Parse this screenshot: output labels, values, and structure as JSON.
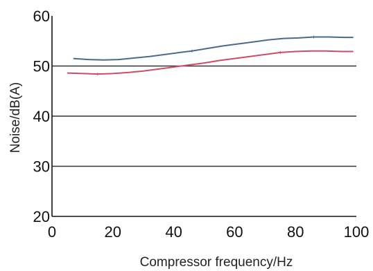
{
  "chart_data": {
    "type": "line",
    "xlabel": "Compressor frequency/Hz",
    "ylabel": "Noise/dB(A)",
    "xlim": [
      0,
      100
    ],
    "ylim": [
      20,
      60
    ],
    "xticks": [
      0,
      20,
      40,
      60,
      80,
      100
    ],
    "yticks": [
      20,
      30,
      40,
      50,
      60
    ],
    "xtick_labels": [
      "0",
      "20",
      "40",
      "60",
      "80",
      "100"
    ],
    "ytick_labels": [
      "20",
      "30",
      "40",
      "50",
      "60"
    ],
    "grid": "horizontal at 30, 40 and 50",
    "series": [
      {
        "color": "#4a6a8a",
        "x": [
          7,
          12,
          17,
          22,
          27,
          32,
          37,
          42,
          46,
          51,
          56,
          61,
          66,
          71,
          76,
          81,
          86,
          91,
          96,
          99
        ],
        "y": [
          51.5,
          51.3,
          51.2,
          51.3,
          51.6,
          51.9,
          52.3,
          52.7,
          53.0,
          53.5,
          54.0,
          54.4,
          54.8,
          55.2,
          55.5,
          55.6,
          55.8,
          55.8,
          55.7,
          55.7
        ],
        "markers_x": [
          46,
          86
        ]
      },
      {
        "color": "#d04a6a",
        "x": [
          5,
          10,
          15,
          20,
          25,
          30,
          35,
          40,
          45,
          50,
          55,
          60,
          65,
          70,
          75,
          80,
          85,
          90,
          95,
          99
        ],
        "y": [
          48.6,
          48.5,
          48.4,
          48.5,
          48.7,
          49.0,
          49.4,
          49.8,
          50.2,
          50.6,
          51.1,
          51.5,
          51.9,
          52.3,
          52.7,
          52.9,
          53.0,
          53.0,
          52.9,
          52.9
        ],
        "markers_x": [
          15,
          75
        ]
      }
    ]
  }
}
